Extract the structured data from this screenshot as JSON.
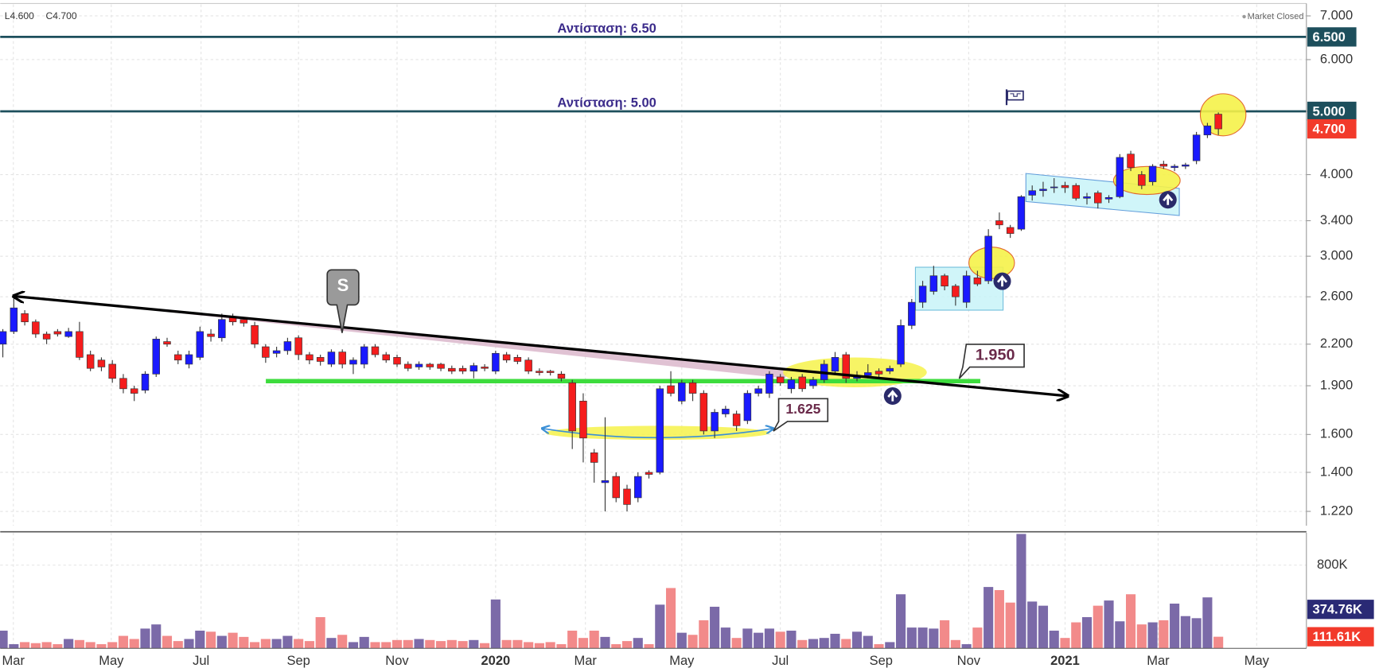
{
  "chart_data": [
    {
      "type": "candlestick",
      "header": [
        "L4.600",
        "C4.700"
      ],
      "status": "Market Closed",
      "up_color": "#1a1aff",
      "down_color": "#f51d1d",
      "log_scale": true,
      "grid": true,
      "ylim": [
        1.16,
        7.29
      ],
      "yticks": [
        {
          "value": 7,
          "label": "7.000"
        },
        {
          "value": 6,
          "label": "6.000"
        },
        {
          "value": 5,
          "label": "5.000"
        },
        {
          "value": 4,
          "label": "4.000"
        },
        {
          "value": 3.4,
          "label": "3.400"
        },
        {
          "value": 3,
          "label": "3.000"
        },
        {
          "value": 2.6,
          "label": "2.600"
        },
        {
          "value": 2.2,
          "label": "2.200"
        },
        {
          "value": 1.9,
          "label": "1.900"
        },
        {
          "value": 1.6,
          "label": "1.600"
        },
        {
          "value": 1.4,
          "label": "1.400"
        },
        {
          "value": 1.22,
          "label": "1.220"
        }
      ],
      "xlim": [
        -0.24,
        119.04
      ],
      "xticks": [
        {
          "value": 0.96,
          "label": "Mar"
        },
        {
          "value": 9.9,
          "label": "May"
        },
        {
          "value": 18.1,
          "label": "Jul"
        },
        {
          "value": 27,
          "label": "Sep"
        },
        {
          "value": 36,
          "label": "Nov"
        },
        {
          "value": 45,
          "label": "2020"
        },
        {
          "value": 53.2,
          "label": "Mar"
        },
        {
          "value": 62,
          "label": "May"
        },
        {
          "value": 71,
          "label": "Jul"
        },
        {
          "value": 80.2,
          "label": "Sep"
        },
        {
          "value": 88.2,
          "label": "Nov"
        },
        {
          "value": 97,
          "label": "2021"
        },
        {
          "value": 105.5,
          "label": "Mar"
        },
        {
          "value": 114.5,
          "label": "May"
        }
      ],
      "open": [
        2.2,
        2.3,
        2.45,
        2.38,
        2.28,
        2.3,
        2.26,
        2.3,
        2.12,
        2.08,
        2.05,
        1.95,
        1.88,
        1.87,
        1.98,
        2.22,
        2.12,
        2.05,
        2.1,
        2.28,
        2.25,
        2.42,
        2.4,
        2.35,
        2.18,
        2.13,
        2.15,
        2.25,
        2.12,
        2.1,
        2.05,
        2.14,
        2.05,
        2.05,
        2.18,
        2.12,
        2.1,
        2.05,
        2.03,
        2.05,
        2.05,
        2.02,
        2.02,
        2.0,
        2.03,
        2.0,
        2.12,
        2.1,
        2.08,
        2.0,
        2.0,
        1.98,
        1.92,
        1.8,
        1.5,
        1.35,
        1.38,
        1.32,
        1.28,
        1.4,
        1.4,
        1.9,
        1.8,
        1.92,
        1.85,
        1.62,
        1.72,
        1.72,
        1.68,
        1.85,
        1.85,
        1.96,
        1.88,
        1.96,
        1.9,
        1.94,
        2.0,
        2.12,
        1.95,
        1.97,
        2.0,
        2.0,
        2.05,
        2.35,
        2.55,
        2.65,
        2.8,
        2.7,
        2.55,
        2.78,
        2.75,
        3.4,
        3.32,
        3.3,
        3.72,
        3.78,
        3.82,
        3.85,
        3.85,
        3.68,
        3.75,
        3.67,
        3.7,
        4.3,
        4.0,
        3.9,
        4.15,
        4.1,
        4.12,
        4.2,
        4.6,
        4.95
      ],
      "high": [
        2.32,
        2.62,
        2.48,
        2.4,
        2.3,
        2.32,
        2.33,
        2.38,
        2.15,
        2.1,
        2.08,
        1.98,
        1.9,
        2.0,
        2.26,
        2.25,
        2.15,
        2.15,
        2.34,
        2.32,
        2.45,
        2.45,
        2.42,
        2.38,
        2.2,
        2.18,
        2.25,
        2.27,
        2.14,
        2.12,
        2.16,
        2.16,
        2.1,
        2.2,
        2.2,
        2.14,
        2.12,
        2.07,
        2.07,
        2.06,
        2.06,
        2.04,
        2.04,
        2.06,
        2.05,
        2.15,
        2.14,
        2.12,
        2.1,
        2.02,
        2.01,
        2.0,
        1.94,
        1.85,
        1.52,
        1.7,
        1.4,
        1.34,
        1.4,
        1.41,
        1.9,
        2.0,
        1.94,
        1.94,
        1.87,
        1.75,
        1.77,
        1.74,
        1.87,
        1.9,
        2.0,
        1.98,
        1.96,
        1.98,
        1.96,
        2.08,
        2.14,
        2.14,
        2.0,
        2.05,
        2.02,
        2.04,
        2.4,
        2.58,
        2.75,
        2.9,
        2.82,
        2.72,
        2.85,
        2.85,
        3.3,
        3.5,
        3.35,
        3.72,
        3.85,
        3.9,
        3.95,
        3.9,
        3.88,
        3.75,
        3.78,
        3.72,
        4.3,
        4.35,
        4.05,
        4.15,
        4.2,
        4.15,
        4.17,
        4.65,
        4.8,
        4.98
      ],
      "low": [
        2.1,
        2.28,
        2.35,
        2.25,
        2.2,
        2.26,
        2.25,
        2.08,
        2.0,
        2.0,
        1.92,
        1.85,
        1.8,
        1.85,
        1.96,
        2.18,
        2.05,
        2.02,
        2.08,
        2.22,
        2.22,
        2.35,
        2.34,
        2.17,
        2.06,
        2.1,
        2.12,
        2.08,
        2.05,
        2.04,
        2.03,
        2.02,
        1.98,
        2.02,
        2.1,
        2.06,
        2.03,
        2.0,
        2.01,
        2.01,
        2.0,
        1.98,
        1.98,
        1.95,
        2.0,
        1.98,
        2.06,
        2.05,
        1.98,
        1.97,
        1.97,
        1.93,
        1.52,
        1.45,
        1.35,
        1.22,
        1.26,
        1.22,
        1.26,
        1.37,
        1.39,
        1.83,
        1.78,
        1.8,
        1.6,
        1.58,
        1.7,
        1.62,
        1.66,
        1.83,
        1.82,
        1.9,
        1.85,
        1.86,
        1.88,
        1.92,
        1.98,
        1.92,
        1.93,
        1.95,
        1.96,
        1.98,
        2.03,
        2.32,
        2.5,
        2.62,
        2.66,
        2.52,
        2.5,
        2.7,
        2.72,
        3.3,
        3.2,
        3.28,
        3.65,
        3.7,
        3.75,
        3.75,
        3.65,
        3.6,
        3.55,
        3.62,
        3.68,
        4.05,
        3.8,
        3.85,
        4.08,
        4.05,
        4.08,
        4.15,
        4.55,
        4.6
      ],
      "close": [
        2.3,
        2.5,
        2.38,
        2.28,
        2.24,
        2.28,
        2.3,
        2.1,
        2.02,
        2.03,
        1.95,
        1.88,
        1.85,
        1.98,
        2.24,
        2.2,
        2.08,
        2.12,
        2.3,
        2.26,
        2.4,
        2.38,
        2.37,
        2.2,
        2.1,
        2.15,
        2.22,
        2.12,
        2.08,
        2.07,
        2.14,
        2.05,
        2.08,
        2.18,
        2.12,
        2.08,
        2.05,
        2.02,
        2.05,
        2.03,
        2.02,
        2.0,
        2.0,
        2.04,
        2.02,
        2.13,
        2.08,
        2.07,
        2.0,
        1.99,
        1.99,
        1.95,
        1.62,
        1.58,
        1.45,
        1.36,
        1.28,
        1.25,
        1.38,
        1.39,
        1.88,
        1.85,
        1.92,
        1.85,
        1.62,
        1.73,
        1.75,
        1.65,
        1.85,
        1.88,
        1.98,
        1.92,
        1.94,
        1.88,
        1.94,
        2.05,
        2.1,
        1.95,
        1.97,
        1.99,
        1.98,
        2.02,
        2.35,
        2.55,
        2.7,
        2.8,
        2.7,
        2.6,
        2.8,
        2.72,
        3.22,
        3.35,
        3.25,
        3.7,
        3.78,
        3.8,
        3.83,
        3.82,
        3.68,
        3.7,
        3.62,
        3.69,
        4.25,
        4.1,
        3.85,
        4.12,
        4.12,
        4.12,
        4.14,
        4.6,
        4.75,
        4.7
      ],
      "resistances": [
        {
          "label": "Αντίσταση: 6.50",
          "value": 6.5,
          "axis_label": "6.500"
        },
        {
          "label": "Αντίσταση: 5.00",
          "value": 5,
          "axis_label": "5.000"
        }
      ],
      "last_price": {
        "value": 4.7,
        "label": "4.700"
      },
      "annotations": [
        "S",
        "1.950",
        "1.625"
      ]
    },
    {
      "type": "bar",
      "ylim": [
        0,
        1112
      ],
      "yticks": [
        {
          "value": 800,
          "label": "800K"
        }
      ],
      "up_color": "#7b6aa8",
      "down_color": "#f28a8a",
      "values": [
        170,
        40,
        60,
        50,
        60,
        40,
        90,
        80,
        60,
        40,
        60,
        120,
        90,
        190,
        230,
        120,
        70,
        90,
        170,
        160,
        120,
        150,
        110,
        60,
        90,
        90,
        120,
        90,
        70,
        300,
        100,
        130,
        60,
        110,
        60,
        60,
        80,
        80,
        90,
        80,
        70,
        80,
        70,
        80,
        50,
        470,
        80,
        80,
        60,
        50,
        60,
        40,
        170,
        100,
        170,
        110,
        40,
        70,
        100,
        40,
        420,
        580,
        150,
        130,
        270,
        400,
        200,
        100,
        190,
        150,
        190,
        160,
        170,
        80,
        90,
        100,
        140,
        90,
        160,
        120,
        40,
        60,
        520,
        200,
        200,
        190,
        270,
        80,
        40,
        200,
        590,
        560,
        440,
        1100,
        450,
        410,
        170,
        100,
        250,
        300,
        410,
        460,
        260,
        520,
        230,
        250,
        270,
        430,
        310,
        290,
        490,
        111.61
      ],
      "last_volume": {
        "value": 111.61,
        "label": "111.61K"
      },
      "ma_last": {
        "value": 374.76,
        "label": "374.76K"
      }
    }
  ]
}
